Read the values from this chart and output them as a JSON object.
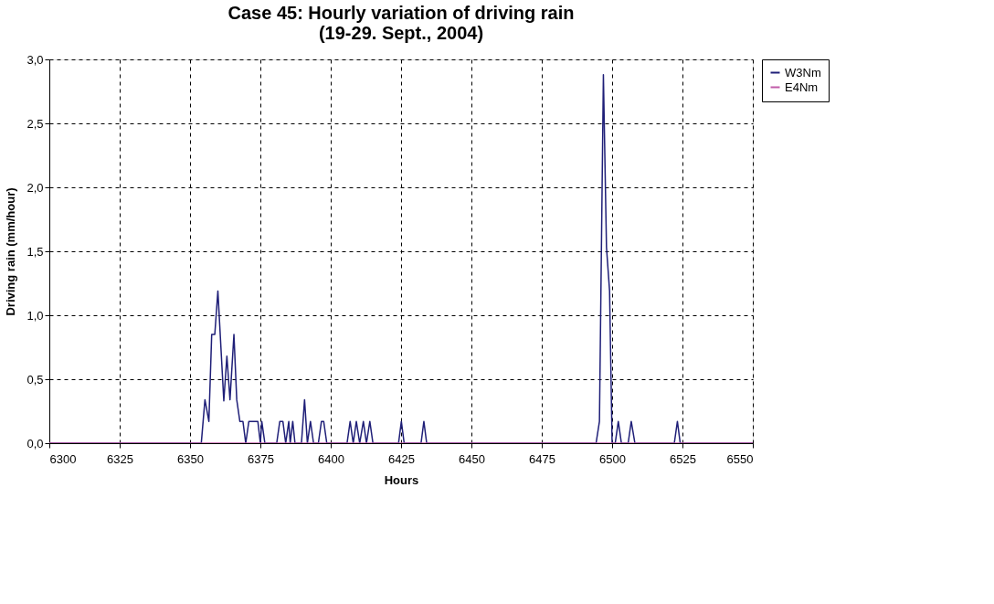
{
  "chart_data": {
    "type": "line",
    "title": "Case 45: Hourly variation of driving rain\n(19-29. Sept., 2004)",
    "xlabel": "Hours",
    "ylabel": "Driving rain (mm/hour)",
    "xlim": [
      6300,
      6550
    ],
    "xticks": [
      6300,
      6325,
      6350,
      6375,
      6400,
      6425,
      6450,
      6475,
      6500,
      6525,
      6550
    ],
    "ylim": [
      0,
      3
    ],
    "yticks": [
      {
        "value": 0,
        "label": "0,0"
      },
      {
        "value": 0.5,
        "label": "0,5"
      },
      {
        "value": 1,
        "label": "1,0"
      },
      {
        "value": 1.5,
        "label": "1,5"
      },
      {
        "value": 2,
        "label": "2,0"
      },
      {
        "value": 2.5,
        "label": "2,5"
      },
      {
        "value": 3,
        "label": "3,0"
      }
    ],
    "grid": true,
    "legend": "right",
    "marker": "none",
    "line_style": "solid",
    "series": [
      {
        "name": "W3Nm",
        "color": "#1f1f78",
        "x": [
          6300,
          6354.0,
          6355.3,
          6356.7,
          6357.7,
          6358.8,
          6359.9,
          6362.0,
          6363.1,
          6364.2,
          6365.6,
          6366.6,
          6367.7,
          6368.8,
          6369.8,
          6370.9,
          6374.1,
          6375.0,
          6375.5,
          6376.6,
          6380.8,
          6381.9,
          6383.0,
          6384.0,
          6385.1,
          6385.6,
          6386.5,
          6387.3,
          6389.6,
          6390.7,
          6391.7,
          6392.8,
          6393.9,
          6395.6,
          6396.7,
          6397.5,
          6398.6,
          6405.8,
          6406.9,
          6408.0,
          6409.1,
          6410.3,
          6411.6,
          6412.7,
          6413.9,
          6415.0,
          6424.1,
          6425.1,
          6426.1,
          6432.1,
          6433.1,
          6434.1,
          6494.3,
          6495.5,
          6496.9,
          6498.0,
          6499.1,
          6500.0,
          6501.1,
          6502.2,
          6503.3,
          6505.7,
          6506.8,
          6508.1,
          6522.1,
          6523.2,
          6524.2,
          6550
        ],
        "values": [
          0,
          0,
          0.34,
          0.17,
          0.85,
          0.85,
          1.19,
          0.33,
          0.68,
          0.34,
          0.85,
          0.34,
          0.17,
          0.17,
          0,
          0.17,
          0.17,
          0,
          0.17,
          0,
          0,
          0.17,
          0.17,
          0,
          0.17,
          0,
          0.17,
          0,
          0,
          0.34,
          0,
          0.17,
          0,
          0,
          0.17,
          0.17,
          0,
          0,
          0.17,
          0,
          0.17,
          0,
          0.17,
          0,
          0.17,
          0,
          0,
          0.17,
          0,
          0,
          0.17,
          0,
          0,
          0.17,
          2.88,
          1.53,
          1.19,
          0,
          0,
          0.17,
          0,
          0,
          0.17,
          0,
          0,
          0.17,
          0,
          0
        ]
      },
      {
        "name": "E4Nm",
        "color": "#c05aa8",
        "x": [
          6300,
          6550
        ],
        "values": [
          0,
          0
        ]
      }
    ]
  }
}
